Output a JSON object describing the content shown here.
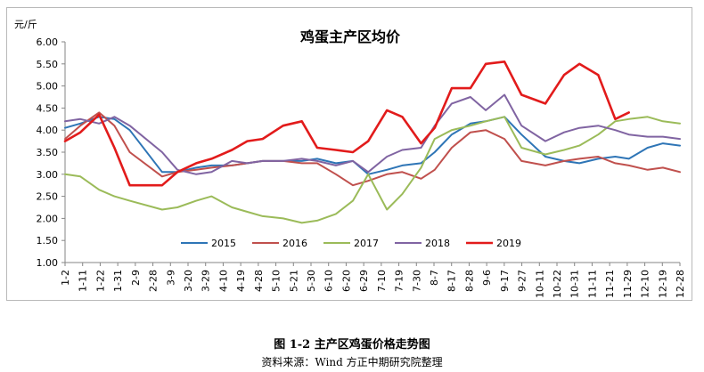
{
  "caption": "图 1-2  主产区鸡蛋价格走势图",
  "source": "资料来源：Wind   方正中期研究院整理",
  "chart_data": {
    "type": "line",
    "title": "鸡蛋主产区均价",
    "unit_label": "元/斤",
    "xlabel": "",
    "ylabel": "",
    "ylim": [
      1.0,
      6.0
    ],
    "y_ticks": [
      "1.00",
      "1.50",
      "2.00",
      "2.50",
      "3.00",
      "3.50",
      "4.00",
      "4.50",
      "5.00",
      "5.50",
      "6.00"
    ],
    "x_ticks": [
      "1-2",
      "1-11",
      "1-22",
      "1-31",
      "2-9",
      "2-28",
      "3-9",
      "3-20",
      "3-29",
      "4-10",
      "4-19",
      "4-28",
      "5-10",
      "5-21",
      "5-30",
      "6-10",
      "6-20",
      "6-29",
      "7-10",
      "7-19",
      "7-30",
      "8-7",
      "8-17",
      "8-28",
      "9-6",
      "9-17",
      "9-27",
      "10-11",
      "10-22",
      "10-31",
      "11-11",
      "11-21",
      "11-29",
      "12-10",
      "12-19",
      "12-28"
    ],
    "x_domain_days": [
      2,
      363
    ],
    "legend_position": "bottom-center",
    "grid": false,
    "series": [
      {
        "name": "2015",
        "color": "#2e75b6",
        "x": [
          2,
          11,
          22,
          31,
          40,
          59,
          68,
          79,
          88,
          100,
          109,
          118,
          130,
          141,
          150,
          161,
          171,
          180,
          191,
          200,
          211,
          219,
          229,
          240,
          249,
          260,
          270,
          284,
          295,
          304,
          315,
          325,
          333,
          344,
          353,
          363
        ],
        "y": [
          4.05,
          4.15,
          4.3,
          4.25,
          4.0,
          3.05,
          3.05,
          3.15,
          3.2,
          3.2,
          3.25,
          3.3,
          3.3,
          3.3,
          3.35,
          3.25,
          3.3,
          3.0,
          3.1,
          3.2,
          3.25,
          3.5,
          3.9,
          4.15,
          4.2,
          4.3,
          3.9,
          3.4,
          3.3,
          3.25,
          3.35,
          3.4,
          3.35,
          3.6,
          3.7,
          3.65
        ]
      },
      {
        "name": "2016",
        "color": "#c0504d",
        "x": [
          2,
          11,
          22,
          31,
          40,
          59,
          68,
          79,
          88,
          100,
          109,
          118,
          130,
          141,
          150,
          161,
          171,
          180,
          191,
          200,
          211,
          219,
          229,
          240,
          249,
          260,
          270,
          284,
          295,
          304,
          315,
          325,
          333,
          344,
          353,
          363
        ],
        "y": [
          3.8,
          4.1,
          4.4,
          4.1,
          3.5,
          2.95,
          3.05,
          3.1,
          3.15,
          3.2,
          3.25,
          3.3,
          3.3,
          3.25,
          3.25,
          3.0,
          2.75,
          2.85,
          3.0,
          3.05,
          2.9,
          3.1,
          3.6,
          3.95,
          4.0,
          3.8,
          3.3,
          3.2,
          3.3,
          3.35,
          3.4,
          3.25,
          3.2,
          3.1,
          3.15,
          3.05
        ]
      },
      {
        "name": "2017",
        "color": "#9bbb59",
        "x": [
          2,
          11,
          22,
          31,
          40,
          59,
          68,
          79,
          88,
          100,
          109,
          118,
          130,
          141,
          150,
          161,
          171,
          180,
          191,
          200,
          211,
          219,
          229,
          240,
          249,
          260,
          270,
          284,
          295,
          304,
          315,
          325,
          333,
          344,
          353,
          363
        ],
        "y": [
          3.0,
          2.95,
          2.65,
          2.5,
          2.4,
          2.2,
          2.25,
          2.4,
          2.5,
          2.25,
          2.15,
          2.05,
          2.0,
          1.9,
          1.95,
          2.1,
          2.4,
          3.0,
          2.2,
          2.55,
          3.15,
          3.8,
          4.0,
          4.1,
          4.2,
          4.3,
          3.6,
          3.45,
          3.55,
          3.65,
          3.9,
          4.2,
          4.25,
          4.3,
          4.2,
          4.15
        ]
      },
      {
        "name": "2018",
        "color": "#8064a2",
        "x": [
          2,
          11,
          22,
          31,
          40,
          59,
          68,
          79,
          88,
          100,
          109,
          118,
          130,
          141,
          150,
          161,
          171,
          180,
          191,
          200,
          211,
          219,
          229,
          240,
          249,
          260,
          270,
          284,
          295,
          304,
          315,
          325,
          333,
          344,
          353,
          363
        ],
        "y": [
          4.2,
          4.25,
          4.15,
          4.3,
          4.1,
          3.5,
          3.1,
          3.0,
          3.05,
          3.3,
          3.25,
          3.3,
          3.3,
          3.35,
          3.3,
          3.2,
          3.3,
          3.05,
          3.4,
          3.55,
          3.6,
          4.1,
          4.6,
          4.75,
          4.45,
          4.8,
          4.1,
          3.75,
          3.95,
          4.05,
          4.1,
          4.0,
          3.9,
          3.85,
          3.85,
          3.8
        ]
      },
      {
        "name": "2019",
        "color": "#e21b1b",
        "x": [
          2,
          11,
          22,
          31,
          40,
          59,
          68,
          79,
          88,
          100,
          109,
          118,
          130,
          141,
          150,
          161,
          171,
          180,
          191,
          200,
          211,
          219,
          229,
          240,
          249,
          260,
          270,
          284,
          295,
          304,
          315,
          325,
          333
        ],
        "y": [
          3.75,
          3.95,
          4.35,
          3.6,
          2.75,
          2.75,
          3.05,
          3.25,
          3.35,
          3.55,
          3.75,
          3.8,
          4.1,
          4.2,
          3.6,
          3.55,
          3.5,
          3.75,
          4.45,
          4.3,
          3.7,
          4.05,
          4.95,
          4.95,
          5.5,
          5.55,
          4.8,
          4.6,
          5.25,
          5.5,
          5.25,
          4.25,
          4.4
        ]
      }
    ]
  }
}
